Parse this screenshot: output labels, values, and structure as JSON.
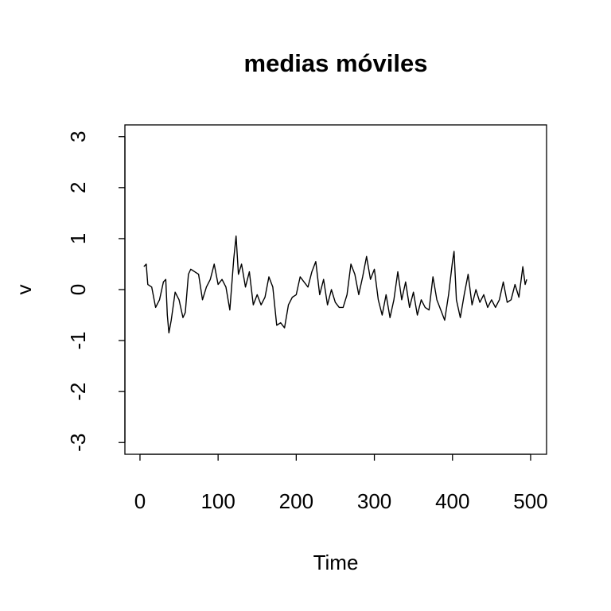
{
  "chart_data": {
    "type": "line",
    "title": "medias móviles",
    "x_label": "Time",
    "y_label": "v",
    "x": [
      5,
      8,
      10,
      15,
      20,
      25,
      30,
      33,
      35,
      37,
      40,
      45,
      50,
      55,
      58,
      62,
      65,
      70,
      75,
      80,
      85,
      90,
      95,
      100,
      105,
      110,
      115,
      120,
      123,
      126,
      130,
      135,
      140,
      145,
      150,
      155,
      160,
      165,
      170,
      175,
      180,
      185,
      190,
      195,
      200,
      205,
      210,
      215,
      220,
      225,
      230,
      235,
      240,
      245,
      250,
      255,
      260,
      265,
      270,
      275,
      280,
      285,
      290,
      295,
      300,
      305,
      310,
      315,
      320,
      325,
      330,
      335,
      340,
      345,
      350,
      355,
      360,
      365,
      370,
      375,
      380,
      385,
      390,
      395,
      400,
      402,
      405,
      410,
      415,
      420,
      425,
      430,
      435,
      440,
      445,
      450,
      455,
      460,
      465,
      470,
      475,
      480,
      485,
      490,
      493,
      495
    ],
    "values": [
      0.45,
      0.5,
      0.1,
      0.05,
      -0.35,
      -0.2,
      0.15,
      0.2,
      -0.5,
      -0.85,
      -0.6,
      -0.05,
      -0.2,
      -0.55,
      -0.45,
      0.3,
      0.4,
      0.35,
      0.3,
      -0.2,
      0.05,
      0.2,
      0.5,
      0.1,
      0.2,
      0.05,
      -0.4,
      0.6,
      1.05,
      0.3,
      0.5,
      0.05,
      0.35,
      -0.3,
      -0.1,
      -0.3,
      -0.15,
      0.25,
      0.05,
      -0.7,
      -0.65,
      -0.75,
      -0.3,
      -0.15,
      -0.1,
      0.25,
      0.15,
      0.05,
      0.35,
      0.55,
      -0.1,
      0.2,
      -0.3,
      0.0,
      -0.25,
      -0.35,
      -0.35,
      -0.1,
      0.5,
      0.3,
      -0.1,
      0.25,
      0.65,
      0.2,
      0.4,
      -0.2,
      -0.5,
      -0.1,
      -0.55,
      -0.2,
      0.35,
      -0.2,
      0.15,
      -0.35,
      -0.05,
      -0.5,
      -0.2,
      -0.35,
      -0.4,
      0.25,
      -0.2,
      -0.4,
      -0.6,
      -0.1,
      0.55,
      0.75,
      -0.2,
      -0.55,
      -0.1,
      0.3,
      -0.3,
      0.0,
      -0.25,
      -0.1,
      -0.35,
      -0.2,
      -0.35,
      -0.2,
      0.15,
      -0.25,
      -0.2,
      0.1,
      -0.15,
      0.45,
      0.1,
      0.2
    ],
    "color": "#000000",
    "xlim": [
      -19.3,
      520.4
    ],
    "xticks": [
      0,
      100,
      200,
      300,
      400,
      500
    ],
    "ylim": [
      -3.23,
      3.23
    ],
    "yticks": [
      -3,
      -2,
      -1,
      0,
      1,
      2,
      3
    ]
  }
}
